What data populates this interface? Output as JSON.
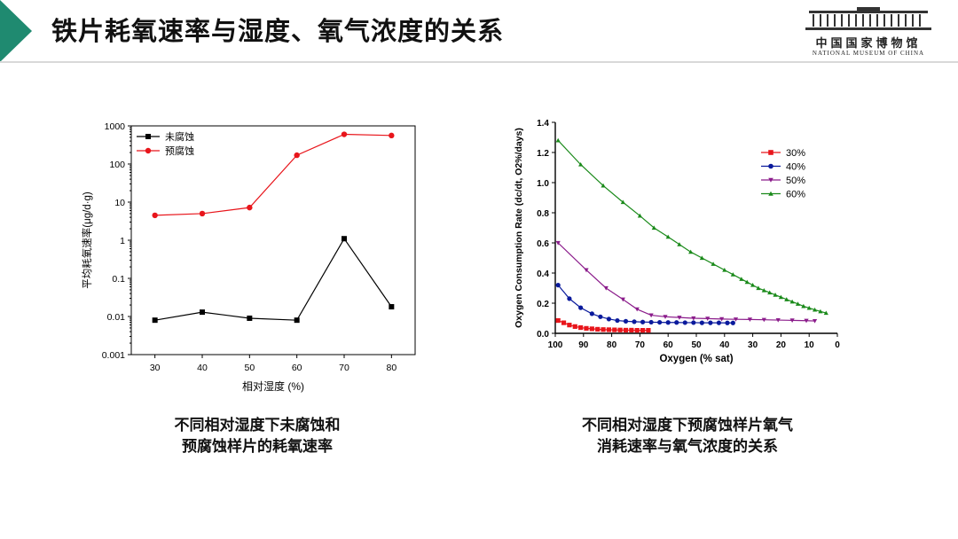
{
  "slide": {
    "title": "铁片耗氧速率与湿度、氧气浓度的关系",
    "accent_color": "#1f8a70"
  },
  "logo": {
    "cn": "中国国家博物馆",
    "en": "NATIONAL MUSEUM OF CHINA"
  },
  "captions": {
    "left": [
      "不同相对湿度下未腐蚀和",
      "预腐蚀样片的耗氧速率"
    ],
    "right": [
      "不同相对湿度下预腐蚀样片氧气",
      "消耗速率与氧气浓度的关系"
    ]
  },
  "chart_data": [
    {
      "type": "line",
      "xlabel": "相对湿度 (%)",
      "ylabel": "平均耗氧速率(μg/d·g)",
      "y_scale": "log",
      "ylim": [
        0.001,
        1000
      ],
      "xlim": [
        25,
        85
      ],
      "x_ticks": [
        "30",
        "40",
        "50",
        "60",
        "70",
        "80"
      ],
      "y_ticks": [
        "1000",
        "100",
        "10",
        "1",
        "0.1",
        "0.01",
        "0.001"
      ],
      "legend_position": "top-left",
      "x": [
        30,
        40,
        50,
        60,
        70,
        80
      ],
      "series": [
        {
          "name": "未腐蚀",
          "color": "#000000",
          "marker": "square",
          "values": [
            0.008,
            0.013,
            0.009,
            0.008,
            1.1,
            0.018
          ]
        },
        {
          "name": "预腐蚀",
          "color": "#e8151b",
          "marker": "circle",
          "values": [
            4.5,
            5.0,
            7.2,
            170,
            600,
            560
          ]
        }
      ]
    },
    {
      "type": "line",
      "xlabel": "Oxygen (% sat)",
      "ylabel": "Oxygen Consumption Rate (dc/dt, O2%/days)",
      "x_reversed": true,
      "xlim": [
        100,
        0
      ],
      "ylim": [
        0,
        1.4
      ],
      "x_ticks": [
        "100",
        "90",
        "80",
        "70",
        "60",
        "50",
        "40",
        "30",
        "20",
        "10",
        "0"
      ],
      "y_ticks": [
        "0.0",
        "0.2",
        "0.4",
        "0.6",
        "0.8",
        "1.0",
        "1.2",
        "1.4"
      ],
      "legend_position": "top-right",
      "series": [
        {
          "name": "30%",
          "color": "#e8151b",
          "marker": "square",
          "x": [
            99,
            97,
            95,
            93,
            91,
            89,
            87,
            85,
            83,
            81,
            79,
            77,
            75,
            73,
            71,
            69,
            67
          ],
          "values": [
            0.085,
            0.07,
            0.055,
            0.045,
            0.038,
            0.033,
            0.03,
            0.027,
            0.025,
            0.024,
            0.023,
            0.022,
            0.021,
            0.021,
            0.02,
            0.02,
            0.02
          ]
        },
        {
          "name": "40%",
          "color": "#0a1a9c",
          "marker": "circle",
          "x": [
            99,
            95,
            91,
            87,
            84,
            81,
            78,
            75,
            72,
            69,
            66,
            63,
            60,
            57,
            54,
            51,
            48,
            45,
            42,
            39,
            37
          ],
          "values": [
            0.32,
            0.23,
            0.17,
            0.13,
            0.11,
            0.095,
            0.085,
            0.08,
            0.077,
            0.075,
            0.074,
            0.073,
            0.072,
            0.072,
            0.071,
            0.071,
            0.07,
            0.07,
            0.07,
            0.069,
            0.069
          ]
        },
        {
          "name": "50%",
          "color": "#8b1c8b",
          "marker": "triangle-down",
          "x": [
            99,
            89,
            82,
            76,
            71,
            66,
            61,
            56,
            51,
            46,
            41,
            36,
            31,
            26,
            21,
            16,
            11,
            8
          ],
          "values": [
            0.6,
            0.42,
            0.3,
            0.225,
            0.16,
            0.12,
            0.11,
            0.105,
            0.1,
            0.098,
            0.095,
            0.093,
            0.092,
            0.09,
            0.088,
            0.086,
            0.084,
            0.082
          ]
        },
        {
          "name": "60%",
          "color": "#1a8a1a",
          "marker": "triangle-up",
          "x": [
            99,
            91,
            83,
            76,
            70,
            65,
            60,
            56,
            52,
            48,
            44,
            40,
            37,
            34,
            32,
            30,
            28,
            26,
            24,
            22,
            20,
            18,
            16,
            14,
            12,
            10,
            8,
            6,
            4
          ],
          "values": [
            1.28,
            1.12,
            0.98,
            0.87,
            0.78,
            0.7,
            0.64,
            0.59,
            0.54,
            0.5,
            0.46,
            0.42,
            0.39,
            0.36,
            0.34,
            0.32,
            0.3,
            0.285,
            0.27,
            0.255,
            0.24,
            0.225,
            0.21,
            0.195,
            0.18,
            0.168,
            0.156,
            0.145,
            0.135
          ]
        }
      ]
    }
  ]
}
